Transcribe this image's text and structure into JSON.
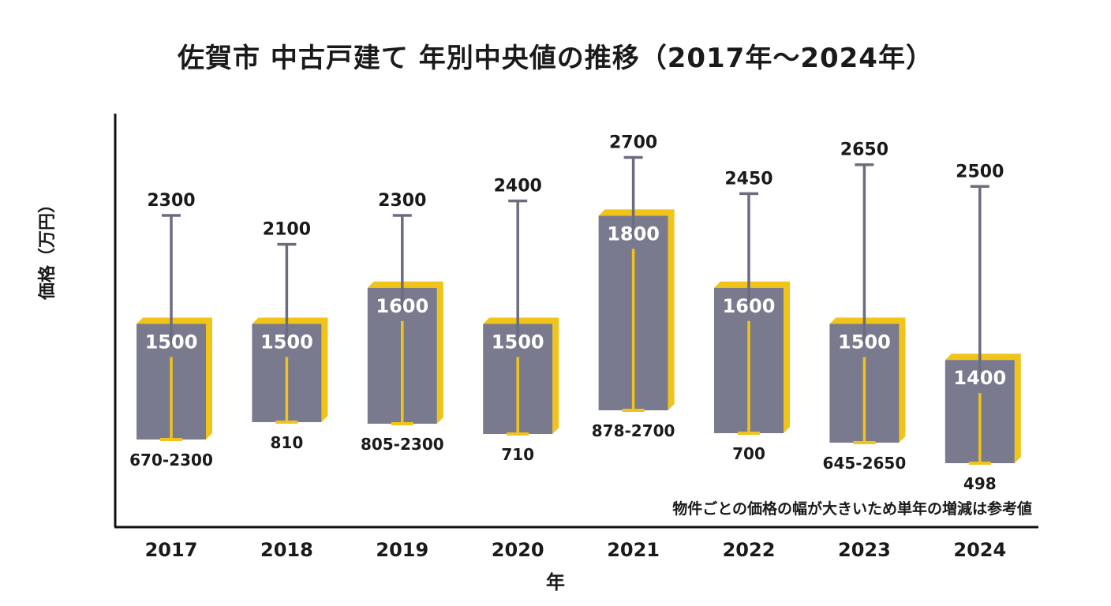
{
  "chart_data": {
    "type": "box",
    "title": "佐賀市 中古戸建て 年別中央値の推移（2017年〜2024年）",
    "xlabel": "年",
    "ylabel": "価格（万円）",
    "annotation": "物件ごとの価格の幅が大きいため単年の増減は参考値",
    "categories": [
      "2017",
      "2018",
      "2019",
      "2020",
      "2021",
      "2022",
      "2023",
      "2024"
    ],
    "median": [
      1500,
      1500,
      1600,
      1500,
      1800,
      1600,
      1500,
      1400
    ],
    "max": [
      2300,
      2100,
      2300,
      2400,
      2700,
      2450,
      2650,
      2500
    ],
    "min": [
      670,
      810,
      805,
      710,
      878,
      700,
      645,
      498
    ],
    "max_labels": [
      "2300",
      "2100",
      "2300",
      "2400",
      "2700",
      "2450",
      "2650",
      "2500"
    ],
    "median_labels": [
      "1500",
      "1500",
      "1600",
      "1500",
      "1800",
      "1600",
      "1500",
      "1400"
    ],
    "bottom_labels": [
      "670-2300",
      "810",
      "805-2300",
      "710",
      "878-2700",
      "700",
      "645-2650",
      "498"
    ],
    "colors": {
      "box": "#7a7a8f",
      "shadow": "#f0c419",
      "whisker": "#6c6c80",
      "low_whisker": "#f0c419",
      "axis": "#111111"
    }
  }
}
